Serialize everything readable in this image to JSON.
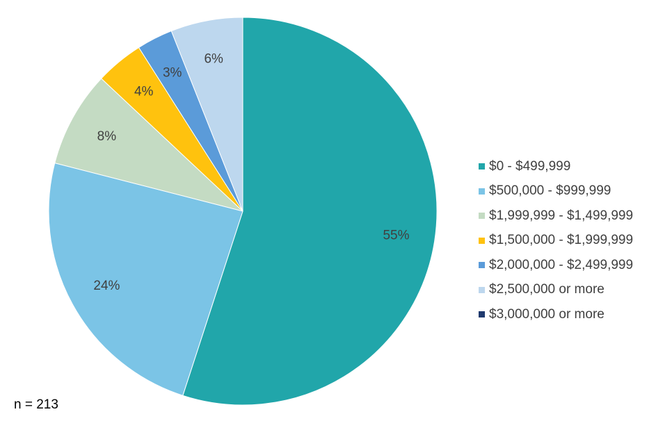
{
  "chart_data": {
    "type": "pie",
    "title": "",
    "categories": [
      "$0 - $499,999",
      "$500,000 - $999,999",
      "$1,999,999 - $1,499,999",
      "$1,500,000 - $1,999,999",
      "$2,000,000 - $2,499,999",
      "$2,500,000 or more",
      "$3,000,000 or more"
    ],
    "values": [
      55,
      24,
      8,
      4,
      3,
      6,
      0
    ],
    "value_labels": [
      "55%",
      "24%",
      "8%",
      "4%",
      "3%",
      "6%",
      ""
    ],
    "colors": [
      "#21A6AA",
      "#7BC4E6",
      "#C4DBC3",
      "#FFC20E",
      "#5B9BD9",
      "#BDD7EE",
      "#1F3A6E"
    ],
    "start_angle_deg": 0,
    "direction": "clockwise",
    "legend_position": "right"
  },
  "footnote": "n = 213"
}
